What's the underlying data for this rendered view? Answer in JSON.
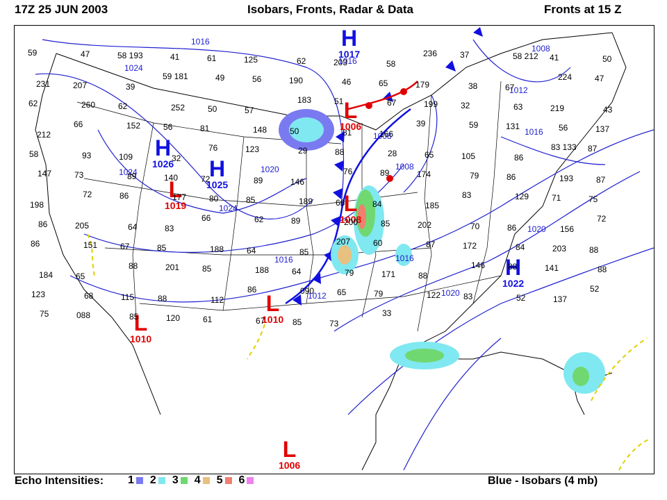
{
  "header": {
    "left": "17Z  25 JUN 2003",
    "center": "Isobars, Fronts, Radar & Data",
    "right": "Fronts at 15 Z"
  },
  "footer": {
    "legend_title": "Echo Intensities:",
    "legend_items": [
      {
        "label": "1",
        "color": "#7a7af0"
      },
      {
        "label": "2",
        "color": "#80e8f0"
      },
      {
        "label": "3",
        "color": "#70d870"
      },
      {
        "label": "4",
        "color": "#e8c080"
      },
      {
        "label": "5",
        "color": "#f08070"
      },
      {
        "label": "6",
        "color": "#f080f0"
      }
    ],
    "right": "Blue - Isobars (4 mb)"
  },
  "colors": {
    "high": "#1010e0",
    "low": "#e00000",
    "isobar": "#2020d0",
    "dryline": "#e0d000"
  },
  "pressure_systems": [
    {
      "type": "H",
      "value": "1017"
    },
    {
      "type": "H",
      "value": "1026"
    },
    {
      "type": "H",
      "value": "1025"
    },
    {
      "type": "H",
      "value": "1022"
    },
    {
      "type": "L",
      "value": "1006"
    },
    {
      "type": "L",
      "value": "1019"
    },
    {
      "type": "L",
      "value": "1008"
    },
    {
      "type": "L",
      "value": "1010"
    },
    {
      "type": "L",
      "value": "1010"
    },
    {
      "type": "L",
      "value": "1006"
    }
  ],
  "isobar_labels": [
    "1016",
    "1024",
    "1016",
    "1024",
    "1020",
    "1024",
    "1016",
    "1008",
    "1012",
    "1016",
    "1020",
    "1020",
    "1016",
    "1012",
    "1008",
    "1008"
  ],
  "station_obs": [
    "59",
    "47",
    "58 193",
    "41",
    "61",
    "125",
    "62",
    "203",
    "58",
    "236",
    "37",
    "58 212",
    "41",
    "50",
    "231",
    "207",
    "39",
    "59 181",
    "49",
    "56",
    "190",
    "46",
    "65",
    "179",
    "38",
    "67",
    "224",
    "47",
    "62",
    "260",
    "62",
    "252",
    "50",
    "57",
    "183",
    "51",
    "67",
    "199",
    "32",
    "63",
    "219",
    "43",
    "212",
    "66",
    "152",
    "56",
    "81",
    "148",
    "50",
    "81",
    "166",
    "39",
    "59",
    "131",
    "56",
    "137",
    "58",
    "93",
    "109",
    "32",
    "76",
    "123",
    "29",
    "88",
    "28",
    "65",
    "105",
    "86",
    "83 133",
    "87",
    "147",
    "73",
    "89",
    "140",
    "72",
    "89",
    "146",
    "76",
    "89",
    "174",
    "79",
    "86",
    "193",
    "87",
    "198",
    "72",
    "86",
    "177",
    "80",
    "85",
    "189",
    "66",
    "84",
    "185",
    "83",
    "129",
    "71",
    "75",
    "86",
    "205",
    "64",
    "83",
    "66",
    "62",
    "89",
    "200",
    "85",
    "202",
    "70",
    "86",
    "156",
    "72",
    "86",
    "151",
    "67",
    "85",
    "188",
    "64",
    "85",
    "207",
    "60",
    "87",
    "172",
    "84",
    "203",
    "88",
    "184",
    "65",
    "88",
    "201",
    "85",
    "188",
    "64",
    "79",
    "171",
    "88",
    "146",
    "88",
    "141",
    "88",
    "123",
    "68",
    "115",
    "88",
    "112",
    "86",
    "090",
    "65",
    "79",
    "122",
    "83",
    "52",
    "137",
    "52",
    "75",
    "088",
    "85",
    "120",
    "61",
    "67",
    "85",
    "73",
    "33"
  ]
}
